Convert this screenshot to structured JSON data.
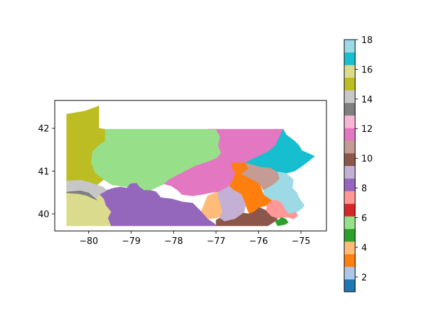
{
  "map": {
    "x_ticks": [
      {
        "value": -80,
        "label": "−80"
      },
      {
        "value": -79,
        "label": "−79"
      },
      {
        "value": -78,
        "label": "−78"
      },
      {
        "value": -77,
        "label": "−77"
      },
      {
        "value": -76,
        "label": "−76"
      },
      {
        "value": -75,
        "label": "−75"
      }
    ],
    "y_ticks": [
      {
        "value": 40,
        "label": "40"
      },
      {
        "value": 41,
        "label": "41"
      },
      {
        "value": 42,
        "label": "42"
      }
    ],
    "xlim": [
      -80.8,
      -74.4
    ],
    "ylim": [
      39.6,
      42.65
    ]
  },
  "colorbar": {
    "range": [
      1,
      18
    ],
    "ticks": [
      {
        "value": 2,
        "label": "2"
      },
      {
        "value": 4,
        "label": "4"
      },
      {
        "value": 6,
        "label": "6"
      },
      {
        "value": 8,
        "label": "8"
      },
      {
        "value": 10,
        "label": "10"
      },
      {
        "value": 12,
        "label": "12"
      },
      {
        "value": 14,
        "label": "14"
      },
      {
        "value": 16,
        "label": "16"
      },
      {
        "value": 18,
        "label": "18"
      }
    ],
    "colors": [
      "#1f77b4",
      "#aec7e8",
      "#ff7f0e",
      "#ffbb78",
      "#2ca02c",
      "#98df8a",
      "#d62728",
      "#ff9896",
      "#9467bd",
      "#c5b0d5",
      "#8c564b",
      "#c49c94",
      "#e377c2",
      "#f7b6d2",
      "#7f7f7f",
      "#c7c7c7",
      "#bcbd22",
      "#dbdb8d",
      "#17becf",
      "#9edae5"
    ]
  },
  "districts": [
    {
      "id": 1,
      "color": "#1f77b4",
      "poly": [
        [
          -75.52,
          39.86
        ],
        [
          -75.42,
          39.8
        ],
        [
          -75.3,
          39.8
        ],
        [
          -75.36,
          39.88
        ],
        [
          -75.46,
          39.92
        ]
      ]
    },
    {
      "id": 2,
      "color": "#aec7e8",
      "poly": []
    },
    {
      "id": 3,
      "color": "#ff7f0e",
      "poly": [
        [
          -76.65,
          41.2
        ],
        [
          -76.3,
          41.2
        ],
        [
          -76.25,
          41.05
        ],
        [
          -76.4,
          40.93
        ],
        [
          -76.1,
          40.78
        ],
        [
          -75.98,
          40.7
        ],
        [
          -75.88,
          40.45
        ],
        [
          -75.68,
          40.32
        ],
        [
          -75.8,
          40.2
        ],
        [
          -75.98,
          40.15
        ],
        [
          -76.1,
          40.05
        ],
        [
          -76.22,
          40.0
        ],
        [
          -76.3,
          40.2
        ],
        [
          -76.4,
          40.4
        ],
        [
          -76.58,
          40.52
        ],
        [
          -76.7,
          40.62
        ],
        [
          -76.62,
          40.78
        ],
        [
          -76.55,
          40.95
        ],
        [
          -76.62,
          41.05
        ]
      ]
    },
    {
      "id": 4,
      "color": "#ffbb78",
      "poly": [
        [
          -77.35,
          40.05
        ],
        [
          -77.2,
          40.42
        ],
        [
          -76.95,
          40.52
        ],
        [
          -76.58,
          40.52
        ],
        [
          -76.62,
          40.3
        ],
        [
          -76.62,
          40.12
        ],
        [
          -76.8,
          39.98
        ],
        [
          -77.0,
          39.9
        ],
        [
          -77.2,
          39.88
        ]
      ]
    },
    {
      "id": 5,
      "color": "#2ca02c",
      "poly": [
        [
          -75.62,
          39.86
        ],
        [
          -75.52,
          39.86
        ],
        [
          -75.46,
          39.92
        ],
        [
          -75.36,
          39.88
        ],
        [
          -75.3,
          39.8
        ],
        [
          -75.38,
          39.75
        ],
        [
          -75.55,
          39.72
        ]
      ]
    },
    {
      "id": 6,
      "color": "#98df8a",
      "poly": [
        [
          -79.62,
          41.98
        ],
        [
          -77.2,
          41.98
        ],
        [
          -77.0,
          41.98
        ],
        [
          -76.9,
          41.8
        ],
        [
          -76.95,
          41.6
        ],
        [
          -76.88,
          41.42
        ],
        [
          -76.98,
          41.3
        ],
        [
          -77.18,
          41.22
        ],
        [
          -77.48,
          41.12
        ],
        [
          -77.68,
          41.02
        ],
        [
          -77.95,
          40.88
        ],
        [
          -78.1,
          40.8
        ],
        [
          -78.22,
          40.7
        ],
        [
          -78.4,
          40.62
        ],
        [
          -78.55,
          40.55
        ],
        [
          -78.7,
          40.52
        ],
        [
          -78.9,
          40.5
        ],
        [
          -79.05,
          40.62
        ],
        [
          -79.25,
          40.65
        ],
        [
          -79.45,
          40.68
        ],
        [
          -79.65,
          40.8
        ],
        [
          -79.85,
          40.95
        ],
        [
          -79.95,
          41.2
        ],
        [
          -79.92,
          41.45
        ],
        [
          -79.78,
          41.6
        ],
        [
          -79.62,
          41.7
        ]
      ]
    },
    {
      "id": 7,
      "color": "#d62728",
      "poly": []
    },
    {
      "id": 8,
      "color": "#ff9896",
      "poly": [
        [
          -75.28,
          40.0
        ],
        [
          -75.12,
          40.05
        ],
        [
          -75.08,
          39.95
        ],
        [
          -75.18,
          39.88
        ],
        [
          -75.3,
          39.92
        ]
      ]
    },
    {
      "id": 9,
      "color": "#9467bd",
      "poly": [
        [
          -79.58,
          40.55
        ],
        [
          -79.42,
          40.6
        ],
        [
          -79.25,
          40.63
        ],
        [
          -79.1,
          40.6
        ],
        [
          -79.02,
          40.7
        ],
        [
          -78.88,
          40.72
        ],
        [
          -78.8,
          40.62
        ],
        [
          -78.7,
          40.55
        ],
        [
          -78.55,
          40.55
        ],
        [
          -78.42,
          40.52
        ],
        [
          -78.3,
          40.38
        ],
        [
          -78.05,
          40.35
        ],
        [
          -77.8,
          40.28
        ],
        [
          -77.55,
          40.25
        ],
        [
          -77.35,
          40.05
        ],
        [
          -77.2,
          39.88
        ],
        [
          -77.05,
          39.78
        ],
        [
          -77.0,
          39.72
        ],
        [
          -79.2,
          39.72
        ],
        [
          -79.48,
          39.72
        ],
        [
          -79.55,
          39.9
        ],
        [
          -79.48,
          40.05
        ],
        [
          -79.6,
          40.2
        ],
        [
          -79.65,
          40.35
        ],
        [
          -79.75,
          40.45
        ]
      ]
    },
    {
      "id": 10,
      "color": "#c5b0d5",
      "poly": [
        [
          -76.95,
          40.52
        ],
        [
          -76.9,
          40.62
        ],
        [
          -76.7,
          40.65
        ],
        [
          -76.58,
          40.55
        ],
        [
          -76.4,
          40.45
        ],
        [
          -76.3,
          40.2
        ],
        [
          -76.35,
          40.02
        ],
        [
          -76.55,
          39.88
        ],
        [
          -76.8,
          39.82
        ],
        [
          -76.92,
          39.9
        ],
        [
          -76.85,
          40.05
        ],
        [
          -76.9,
          40.25
        ],
        [
          -76.95,
          40.4
        ]
      ]
    },
    {
      "id": 11,
      "color": "#8c564b",
      "poly": [
        [
          -77.0,
          39.72
        ],
        [
          -75.78,
          39.72
        ],
        [
          -75.62,
          39.82
        ],
        [
          -75.55,
          39.9
        ],
        [
          -75.7,
          39.95
        ],
        [
          -75.82,
          40.08
        ],
        [
          -75.98,
          40.15
        ],
        [
          -76.1,
          40.05
        ],
        [
          -76.22,
          40.0
        ],
        [
          -76.35,
          40.02
        ],
        [
          -76.55,
          39.88
        ],
        [
          -76.8,
          39.82
        ],
        [
          -76.92,
          39.9
        ],
        [
          -77.0,
          39.85
        ]
      ]
    },
    {
      "id": 12,
      "color": "#c49c94",
      "poly": [
        [
          -76.3,
          41.2
        ],
        [
          -75.95,
          41.1
        ],
        [
          -75.72,
          41.08
        ],
        [
          -75.55,
          40.98
        ],
        [
          -75.5,
          40.82
        ],
        [
          -75.62,
          40.7
        ],
        [
          -75.88,
          40.55
        ],
        [
          -75.98,
          40.7
        ],
        [
          -76.1,
          40.78
        ],
        [
          -76.4,
          40.93
        ],
        [
          -76.25,
          41.05
        ]
      ]
    },
    {
      "id": 13,
      "color": "#e377c2",
      "poly": [
        [
          -77.2,
          41.98
        ],
        [
          -75.42,
          41.98
        ],
        [
          -75.35,
          41.85
        ],
        [
          -75.6,
          41.6
        ],
        [
          -75.78,
          41.45
        ],
        [
          -76.05,
          41.32
        ],
        [
          -76.3,
          41.2
        ],
        [
          -76.65,
          41.2
        ],
        [
          -76.62,
          41.05
        ],
        [
          -76.55,
          40.95
        ],
        [
          -76.62,
          40.78
        ],
        [
          -76.7,
          40.65
        ],
        [
          -76.95,
          40.52
        ],
        [
          -77.1,
          40.5
        ],
        [
          -77.35,
          40.45
        ],
        [
          -77.55,
          40.42
        ],
        [
          -77.8,
          40.45
        ],
        [
          -77.9,
          40.55
        ],
        [
          -78.05,
          40.65
        ],
        [
          -78.22,
          40.7
        ],
        [
          -78.1,
          40.8
        ],
        [
          -77.95,
          40.88
        ],
        [
          -77.68,
          41.02
        ],
        [
          -77.48,
          41.12
        ],
        [
          -77.18,
          41.22
        ],
        [
          -76.98,
          41.3
        ],
        [
          -76.88,
          41.42
        ],
        [
          -76.95,
          41.6
        ],
        [
          -76.9,
          41.8
        ],
        [
          -77.0,
          41.98
        ]
      ]
    },
    {
      "id": 14,
      "color": "#f7b6d2",
      "poly": []
    },
    {
      "id": 15,
      "color": "#7f7f7f",
      "poly": [
        [
          -80.52,
          40.48
        ],
        [
          -80.25,
          40.46
        ],
        [
          -80.05,
          40.42
        ],
        [
          -79.9,
          40.35
        ],
        [
          -79.78,
          40.3
        ],
        [
          -79.85,
          40.4
        ],
        [
          -80.0,
          40.5
        ],
        [
          -80.2,
          40.55
        ],
        [
          -80.52,
          40.52
        ]
      ]
    },
    {
      "id": 16,
      "color": "#c7c7c7",
      "poly": [
        [
          -80.52,
          40.78
        ],
        [
          -80.2,
          40.8
        ],
        [
          -80.0,
          40.75
        ],
        [
          -79.8,
          40.68
        ],
        [
          -79.65,
          40.62
        ],
        [
          -79.58,
          40.55
        ],
        [
          -79.75,
          40.45
        ],
        [
          -79.82,
          40.35
        ],
        [
          -80.0,
          40.5
        ],
        [
          -80.2,
          40.55
        ],
        [
          -80.52,
          40.52
        ]
      ]
    },
    {
      "id": 17,
      "color": "#bcbd22",
      "poly": [
        [
          -80.52,
          42.33
        ],
        [
          -80.1,
          42.4
        ],
        [
          -79.76,
          42.52
        ],
        [
          -79.76,
          42.0
        ],
        [
          -79.62,
          41.98
        ],
        [
          -79.62,
          41.7
        ],
        [
          -79.78,
          41.6
        ],
        [
          -79.92,
          41.45
        ],
        [
          -79.95,
          41.2
        ],
        [
          -79.85,
          40.95
        ],
        [
          -79.65,
          40.8
        ],
        [
          -79.8,
          40.68
        ],
        [
          -80.0,
          40.75
        ],
        [
          -80.2,
          40.8
        ],
        [
          -80.52,
          40.78
        ]
      ]
    },
    {
      "id": 18,
      "color": "#dbdb8d",
      "poly": [
        [
          -80.52,
          40.48
        ],
        [
          -80.52,
          39.72
        ],
        [
          -79.48,
          39.72
        ],
        [
          -79.55,
          39.9
        ],
        [
          -79.48,
          40.05
        ],
        [
          -79.6,
          40.2
        ],
        [
          -79.65,
          40.35
        ],
        [
          -79.75,
          40.45
        ],
        [
          -79.82,
          40.35
        ],
        [
          -79.78,
          40.3
        ],
        [
          -79.9,
          40.35
        ],
        [
          -80.05,
          40.42
        ],
        [
          -80.25,
          40.46
        ]
      ]
    },
    {
      "id": 19,
      "color": "#17becf",
      "poly": [
        [
          -75.42,
          41.98
        ],
        [
          -75.35,
          41.85
        ],
        [
          -75.15,
          41.7
        ],
        [
          -75.05,
          41.6
        ],
        [
          -74.98,
          41.48
        ],
        [
          -74.8,
          41.4
        ],
        [
          -74.68,
          41.35
        ],
        [
          -74.8,
          41.25
        ],
        [
          -75.0,
          41.1
        ],
        [
          -75.15,
          41.0
        ],
        [
          -75.35,
          40.95
        ],
        [
          -75.55,
          40.98
        ],
        [
          -75.72,
          41.08
        ],
        [
          -75.95,
          41.1
        ],
        [
          -76.3,
          41.2
        ],
        [
          -76.05,
          41.32
        ],
        [
          -75.78,
          41.45
        ],
        [
          -75.6,
          41.6
        ]
      ]
    },
    {
      "id": 20,
      "color": "#9edae5",
      "poly": [
        [
          -75.55,
          40.98
        ],
        [
          -75.35,
          40.95
        ],
        [
          -75.18,
          40.8
        ],
        [
          -75.2,
          40.6
        ],
        [
          -75.1,
          40.5
        ],
        [
          -75.05,
          40.38
        ],
        [
          -74.92,
          40.2
        ],
        [
          -74.98,
          40.12
        ],
        [
          -75.08,
          40.05
        ],
        [
          -75.12,
          40.05
        ],
        [
          -75.28,
          40.0
        ],
        [
          -75.38,
          40.1
        ],
        [
          -75.45,
          40.25
        ],
        [
          -75.58,
          40.32
        ],
        [
          -75.68,
          40.32
        ],
        [
          -75.88,
          40.45
        ],
        [
          -75.88,
          40.55
        ],
        [
          -75.62,
          40.7
        ],
        [
          -75.5,
          40.82
        ]
      ]
    },
    {
      "id": 21,
      "color": "#ff9896",
      "poly": [
        [
          -75.7,
          39.95
        ],
        [
          -75.55,
          39.9
        ],
        [
          -75.46,
          39.92
        ],
        [
          -75.3,
          39.92
        ],
        [
          -75.28,
          40.0
        ],
        [
          -75.38,
          40.1
        ],
        [
          -75.45,
          40.25
        ],
        [
          -75.58,
          40.32
        ],
        [
          -75.68,
          40.32
        ],
        [
          -75.8,
          40.2
        ],
        [
          -75.82,
          40.08
        ]
      ]
    }
  ]
}
